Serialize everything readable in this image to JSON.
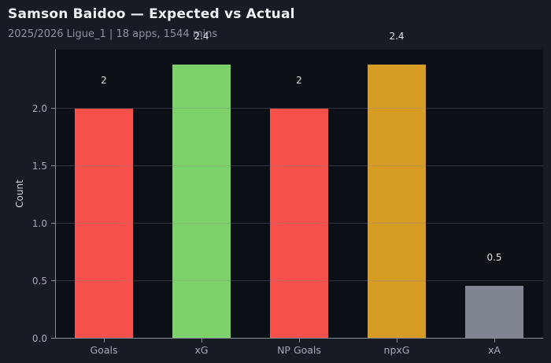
{
  "header": {
    "title": "Samson Baidoo — Expected vs Actual",
    "subtitle": "2025/2026 Ligue_1 | 18 apps, 1544 mins"
  },
  "colors": {
    "page_bg": "#171b24",
    "plot_bg": "#0b0f16",
    "axis": "#878d97",
    "grid": "rgba(128,134,146,0.33)",
    "title_text": "#eef0f3",
    "subtitle_text": "#8b919c",
    "tick_label": "#a3a9b2",
    "value_label": "#dde0e4",
    "bar_red": "#f8514b",
    "bar_green": "#7cd168",
    "bar_orange": "#d79c24",
    "bar_gray": "#7f8692"
  },
  "chart_data": {
    "type": "bar",
    "title": "Samson Baidoo — Expected vs Actual",
    "subtitle": "2025/2026 Ligue_1 | 18 apps, 1544 mins",
    "categories": [
      "Goals",
      "xG",
      "NP Goals",
      "npxG",
      "xA"
    ],
    "values": [
      2,
      2.38,
      2,
      2.38,
      0.46
    ],
    "value_labels": [
      "2",
      "2.4",
      "2",
      "2.4",
      "0.5"
    ],
    "bar_colors": [
      "#f8514b",
      "#7cd168",
      "#f8514b",
      "#d79c24",
      "#7f8692"
    ],
    "xlabel": "",
    "ylabel": "Count",
    "ylim": [
      0,
      2.51
    ],
    "yticks": [
      0.0,
      0.5,
      1.0,
      1.5,
      2.0
    ],
    "ytick_labels": [
      "0.0",
      "0.5",
      "1.0",
      "1.5",
      "2.0"
    ],
    "grid": "horizontal-over-bars",
    "legend": "none"
  }
}
